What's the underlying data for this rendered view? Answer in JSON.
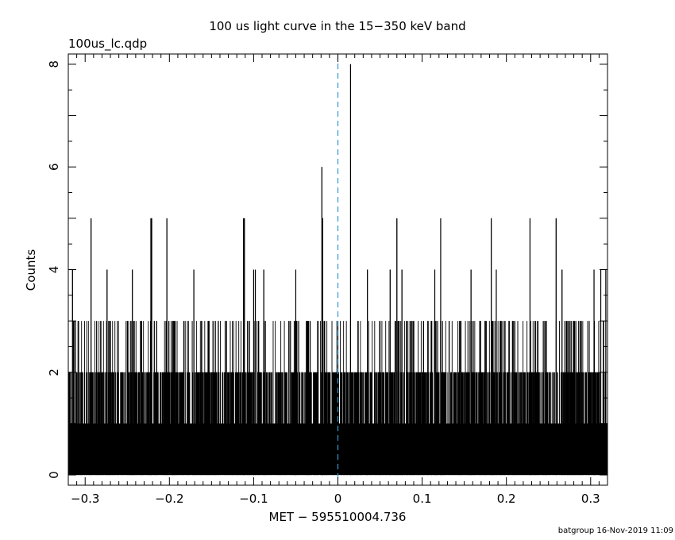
{
  "chart_data": {
    "type": "bar",
    "title": "100 us light curve in the 15−350 keV band",
    "subtitle": "100us_lc.qdp",
    "xlabel": "MET − 595510004.736",
    "ylabel": "Counts",
    "footer": "batgroup 16-Nov-2019 11:09",
    "xlim": [
      -0.32,
      0.32
    ],
    "ylim": [
      -0.2,
      8.2
    ],
    "x_ticks": [
      -0.3,
      -0.2,
      -0.1,
      0,
      0.1,
      0.2,
      0.3
    ],
    "x_tick_labels": [
      "−0.3",
      "−0.2",
      "−0.1",
      "0",
      "0.1",
      "0.2",
      "0.3"
    ],
    "y_ticks": [
      0,
      2,
      4,
      6,
      8
    ],
    "y_tick_labels": [
      "0",
      "2",
      "4",
      "6",
      "8"
    ],
    "bin_width": 0.0001,
    "reference_line": {
      "x": 0,
      "color": "#3399cc",
      "style": "dashed"
    },
    "peaks": [
      {
        "x": 0.015,
        "y": 8
      },
      {
        "x": -0.019,
        "y": 6
      },
      {
        "x": -0.293,
        "y": 5
      },
      {
        "x": -0.222,
        "y": 5
      },
      {
        "x": -0.221,
        "y": 5
      },
      {
        "x": -0.203,
        "y": 5
      },
      {
        "x": -0.112,
        "y": 5
      },
      {
        "x": -0.111,
        "y": 5
      },
      {
        "x": -0.018,
        "y": 5
      },
      {
        "x": 0.07,
        "y": 5
      },
      {
        "x": 0.122,
        "y": 5
      },
      {
        "x": 0.182,
        "y": 5
      },
      {
        "x": 0.228,
        "y": 5
      },
      {
        "x": 0.259,
        "y": 5
      },
      {
        "x": -0.315,
        "y": 4
      },
      {
        "x": -0.274,
        "y": 4
      },
      {
        "x": -0.244,
        "y": 4
      },
      {
        "x": -0.171,
        "y": 4
      },
      {
        "x": -0.1,
        "y": 4
      },
      {
        "x": -0.098,
        "y": 4
      },
      {
        "x": -0.088,
        "y": 4
      },
      {
        "x": -0.05,
        "y": 4
      },
      {
        "x": 0.035,
        "y": 4
      },
      {
        "x": 0.062,
        "y": 4
      },
      {
        "x": 0.076,
        "y": 4
      },
      {
        "x": 0.115,
        "y": 4
      },
      {
        "x": 0.158,
        "y": 4
      },
      {
        "x": 0.188,
        "y": 4
      },
      {
        "x": 0.266,
        "y": 4
      },
      {
        "x": 0.304,
        "y": 4
      },
      {
        "x": 0.312,
        "y": 4
      },
      {
        "x": 0.318,
        "y": 4
      }
    ],
    "background": {
      "level_1_fraction": 0.72,
      "level_2_fraction": 0.16,
      "level_3_fraction": 0.04
    }
  }
}
